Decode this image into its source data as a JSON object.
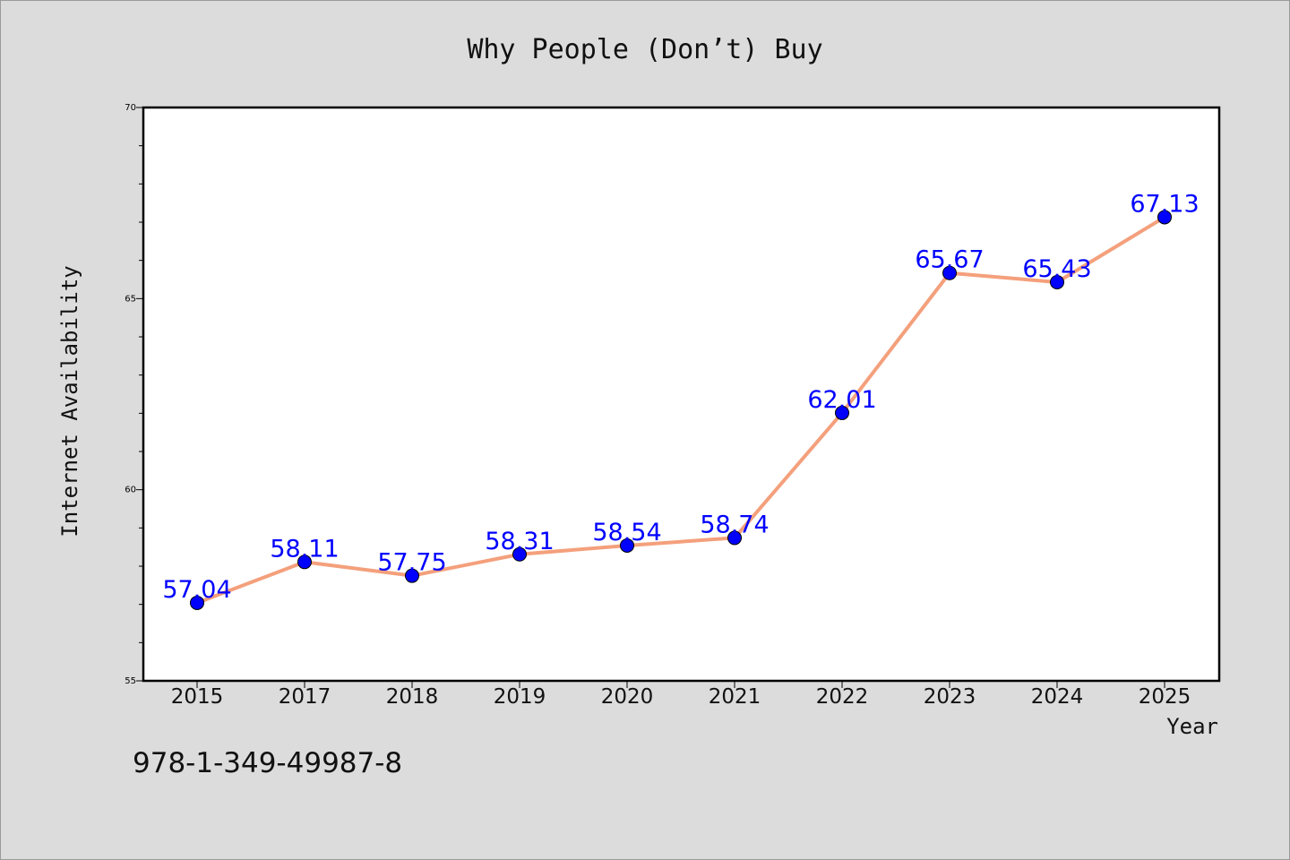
{
  "chart_data": {
    "type": "line",
    "title": "Why People (Don’t) Buy",
    "xlabel": "Year",
    "ylabel": "Internet Availability",
    "categories": [
      "2015",
      "2017",
      "2018",
      "2019",
      "2020",
      "2021",
      "2022",
      "2023",
      "2024",
      "2025"
    ],
    "series": [
      {
        "values": [
          57.04,
          58.11,
          57.75,
          58.31,
          58.54,
          58.74,
          62.01,
          65.67,
          65.43,
          67.13
        ],
        "labels": [
          "57.04",
          "58.11",
          "57.75",
          "58.31",
          "58.54",
          "58.74",
          "62.01",
          "65.67",
          "65.43",
          "67.13"
        ],
        "line_color": "#f4a07c",
        "marker_color": "#0000ff",
        "label_color": "#0000ff"
      }
    ],
    "ylim": [
      55,
      70
    ],
    "yticks": [
      "55",
      "60",
      "65",
      "70"
    ],
    "grid": false,
    "legend": "none"
  },
  "footer": {
    "isbn": "978-1-349-49987-8"
  }
}
